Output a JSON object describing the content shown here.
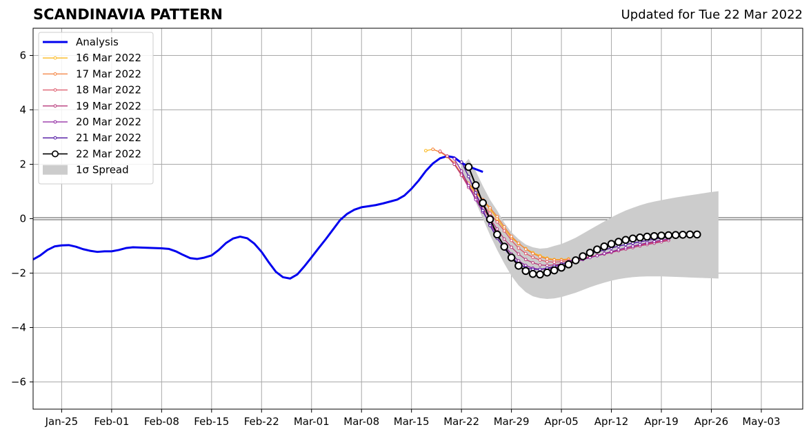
{
  "header": {
    "title": "SCANDINAVIA PATTERN",
    "updated": "Updated for Tue 22 Mar 2022"
  },
  "chart_data": {
    "type": "line",
    "title": "SCANDINAVIA PATTERN",
    "subtitle": "Updated for Tue 22 Mar 2022",
    "xlabel": "",
    "ylabel": "",
    "x_ticks": [
      "Jan-25",
      "Feb-01",
      "Feb-08",
      "Feb-15",
      "Feb-22",
      "Mar-01",
      "Mar-08",
      "Mar-15",
      "Mar-22",
      "Mar-29",
      "Apr-05",
      "Apr-12",
      "Apr-19",
      "Apr-26",
      "May-03"
    ],
    "x_tick_days": [
      24,
      31,
      38,
      45,
      52,
      59,
      66,
      73,
      80,
      87,
      94,
      101,
      108,
      115,
      122
    ],
    "xlim_days": [
      20,
      127.8
    ],
    "x_day_reference": "day 1 = 1 Jan 2022",
    "y_ticks": [
      -6,
      -4,
      -2,
      0,
      2,
      4,
      6
    ],
    "y_tick_labels": [
      "−6",
      "−4",
      "−2",
      "0",
      "2",
      "4",
      "6"
    ],
    "ylim": [
      -7,
      7
    ],
    "grid": true,
    "legend_position": "top-left",
    "analysis": {
      "name": "Analysis",
      "color": "#0000ee",
      "x_start_day": 20,
      "values": [
        -1.5,
        -1.35,
        -1.15,
        -1.02,
        -0.98,
        -0.97,
        -1.03,
        -1.12,
        -1.18,
        -1.22,
        -1.2,
        -1.2,
        -1.15,
        -1.08,
        -1.05,
        -1.06,
        -1.07,
        -1.08,
        -1.09,
        -1.11,
        -1.2,
        -1.33,
        -1.45,
        -1.48,
        -1.43,
        -1.35,
        -1.15,
        -0.9,
        -0.73,
        -0.66,
        -0.72,
        -0.92,
        -1.22,
        -1.6,
        -1.95,
        -2.15,
        -2.2,
        -2.05,
        -1.75,
        -1.42,
        -1.08,
        -0.75,
        -0.4,
        -0.05,
        0.18,
        0.33,
        0.42,
        0.46,
        0.5,
        0.56,
        0.63,
        0.7,
        0.85,
        1.1,
        1.4,
        1.75,
        2.03,
        2.22,
        2.3,
        2.25,
        2.05,
        1.92,
        1.82,
        1.72
      ]
    },
    "forecasts": [
      {
        "name": "16 Mar 2022",
        "color": "#fbb81c",
        "x_start_day": 75,
        "values": [
          2.5,
          2.55,
          2.45,
          2.28,
          2.0,
          1.6,
          1.25,
          0.95,
          0.68,
          0.35,
          0.0,
          -0.38,
          -0.7,
          -0.92,
          -1.1,
          -1.25,
          -1.36,
          -1.45,
          -1.5,
          -1.5,
          -1.48
        ]
      },
      {
        "name": "17 Mar 2022",
        "color": "#f37f3a",
        "x_start_day": 76,
        "values": [
          2.55,
          2.45,
          2.3,
          2.05,
          1.65,
          1.3,
          1.0,
          0.7,
          0.4,
          0.08,
          -0.3,
          -0.65,
          -0.9,
          -1.12,
          -1.28,
          -1.4,
          -1.48,
          -1.52,
          -1.52,
          -1.5
        ]
      },
      {
        "name": "18 Mar 2022",
        "color": "#dc5467",
        "x_start_day": 77,
        "values": [
          2.48,
          2.3,
          2.0,
          1.6,
          1.2,
          0.85,
          0.52,
          0.2,
          -0.12,
          -0.45,
          -0.8,
          -1.08,
          -1.28,
          -1.42,
          -1.52,
          -1.58,
          -1.6,
          -1.58,
          -1.55,
          -1.5,
          -1.45,
          -1.4,
          -1.35,
          -1.28,
          -1.22,
          -1.15,
          -1.08,
          -1.02,
          -0.97,
          -0.92,
          -0.87,
          -0.82,
          -0.78
        ]
      },
      {
        "name": "19 Mar 2022",
        "color": "#b73779",
        "x_start_day": 78,
        "values": [
          2.3,
          2.0,
          1.6,
          1.15,
          0.75,
          0.38,
          0.0,
          -0.38,
          -0.75,
          -1.05,
          -1.3,
          -1.5,
          -1.62,
          -1.7,
          -1.72,
          -1.7,
          -1.66,
          -1.6,
          -1.54,
          -1.48,
          -1.42,
          -1.36,
          -1.3,
          -1.24,
          -1.18,
          -1.12,
          -1.06,
          -1.0,
          -0.95,
          -0.9,
          -0.85,
          -0.8
        ]
      },
      {
        "name": "20 Mar 2022",
        "color": "#8c1f9e",
        "x_start_day": 79,
        "values": [
          2.2,
          1.75,
          1.22,
          0.7,
          0.25,
          -0.18,
          -0.6,
          -0.98,
          -1.3,
          -1.55,
          -1.72,
          -1.82,
          -1.86,
          -1.85,
          -1.8,
          -1.73,
          -1.65,
          -1.58,
          -1.5,
          -1.43,
          -1.36,
          -1.28,
          -1.21,
          -1.14,
          -1.07,
          -1.01,
          -0.95,
          -0.89,
          -0.84,
          -0.79,
          -0.74
        ]
      },
      {
        "name": "21 Mar 2022",
        "color": "#4b0fa0",
        "x_start_day": 80,
        "values": [
          2.08,
          1.55,
          0.95,
          0.3,
          -0.25,
          -0.72,
          -1.1,
          -1.42,
          -1.65,
          -1.8,
          -1.86,
          -1.86,
          -1.82,
          -1.75,
          -1.67,
          -1.58,
          -1.48,
          -1.38,
          -1.3,
          -1.22,
          -1.15,
          -1.08,
          -1.01,
          -0.95,
          -0.9,
          -0.85,
          -0.8,
          -0.75,
          -0.71,
          -0.67
        ]
      },
      {
        "name": "22 Mar 2022",
        "color": "#000000",
        "x_start_day": 81,
        "values": [
          1.9,
          1.23,
          0.58,
          -0.02,
          -0.58,
          -1.03,
          -1.43,
          -1.73,
          -1.92,
          -2.03,
          -2.05,
          -1.98,
          -1.9,
          -1.8,
          -1.68,
          -1.53,
          -1.38,
          -1.25,
          -1.13,
          -1.02,
          -0.93,
          -0.85,
          -0.78,
          -0.73,
          -0.69,
          -0.66,
          -0.64,
          -0.62,
          -0.61,
          -0.6,
          -0.59,
          -0.58,
          -0.58
        ]
      }
    ],
    "spread": {
      "name": "1σ Spread",
      "color": "#cccccc",
      "x_start_day": 80,
      "upper": [
        1.9,
        2.2,
        1.75,
        1.2,
        0.7,
        0.3,
        -0.15,
        -0.5,
        -0.75,
        -0.95,
        -1.05,
        -1.1,
        -1.08,
        -1.0,
        -0.93,
        -0.82,
        -0.7,
        -0.55,
        -0.4,
        -0.25,
        -0.1,
        0.05,
        0.18,
        0.3,
        0.4,
        0.49,
        0.57,
        0.63,
        0.68,
        0.73,
        0.78,
        0.82,
        0.86,
        0.9,
        0.94,
        0.98,
        1.01
      ],
      "lower": [
        1.7,
        1.2,
        0.6,
        0.0,
        -0.6,
        -1.15,
        -1.65,
        -2.1,
        -2.45,
        -2.7,
        -2.85,
        -2.92,
        -2.95,
        -2.93,
        -2.88,
        -2.8,
        -2.72,
        -2.62,
        -2.52,
        -2.43,
        -2.35,
        -2.28,
        -2.22,
        -2.18,
        -2.15,
        -2.13,
        -2.12,
        -2.12,
        -2.12,
        -2.13,
        -2.14,
        -2.15,
        -2.16,
        -2.17,
        -2.18,
        -2.19,
        -2.2
      ]
    },
    "legend": [
      "Analysis",
      "16 Mar 2022",
      "17 Mar 2022",
      "18 Mar 2022",
      "19 Mar 2022",
      "20 Mar 2022",
      "21 Mar 2022",
      "22 Mar 2022",
      "1σ Spread"
    ]
  }
}
